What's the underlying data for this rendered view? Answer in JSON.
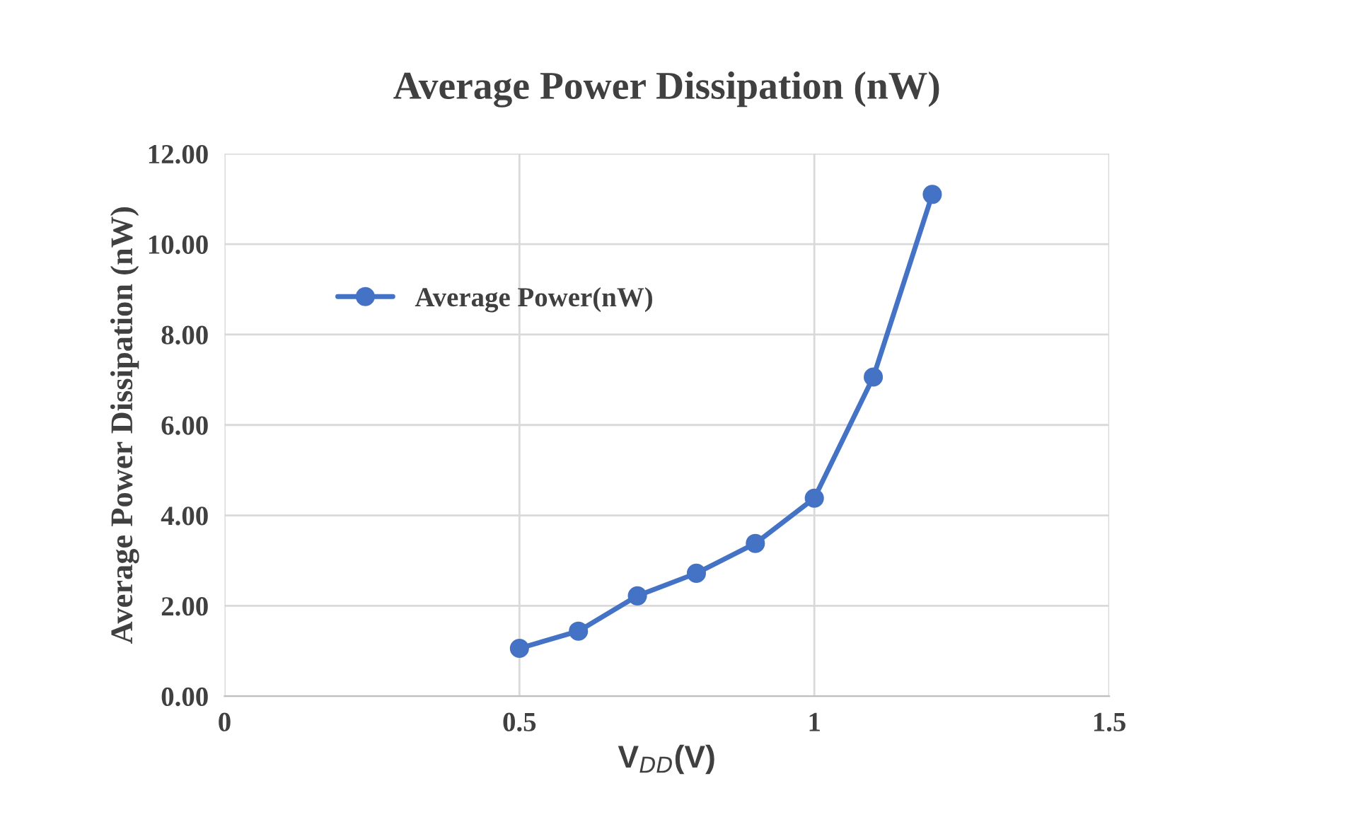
{
  "chart_data": {
    "type": "line",
    "title": "Average Power Dissipation (nW)",
    "xlabel": "V$_{DD}$(V)",
    "ylabel": "Average Power Dissipation (nW)",
    "x": [
      0.5,
      0.6,
      0.7,
      0.8,
      0.9,
      1.0,
      1.1,
      1.2
    ],
    "series": [
      {
        "name": "Average Power(nW)",
        "color": "#4472c4",
        "values": [
          1.06,
          1.44,
          2.22,
          2.72,
          3.38,
          4.38,
          7.06,
          11.1
        ]
      }
    ],
    "xlim": [
      0,
      1.5
    ],
    "xticks": [
      0,
      0.5,
      1,
      1.5
    ],
    "ylim": [
      0,
      12
    ],
    "yticks": [
      {
        "value": 0,
        "label": "0.00"
      },
      {
        "value": 2,
        "label": "2.00"
      },
      {
        "value": 4,
        "label": "4.00"
      },
      {
        "value": 6,
        "label": "6.00"
      },
      {
        "value": 8,
        "label": "8.00"
      },
      {
        "value": 10,
        "label": "10.00"
      },
      {
        "value": 12,
        "label": "12.00"
      }
    ],
    "grid": true,
    "legend": "upper left",
    "marker": "circle",
    "line_style": "solid"
  }
}
